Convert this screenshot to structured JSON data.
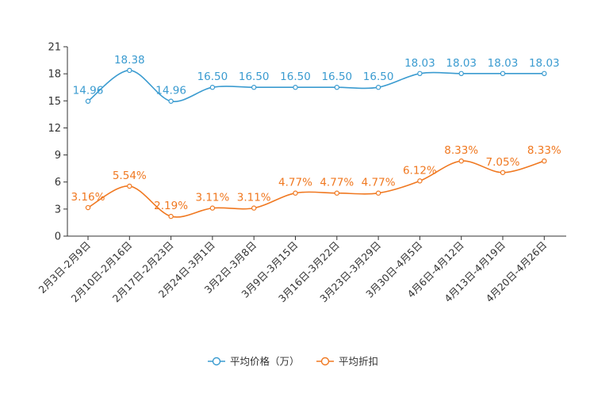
{
  "chart_data": {
    "type": "line",
    "title": "",
    "xlabel": "",
    "ylabel": "",
    "ylim": [
      0,
      21
    ],
    "yticks": [
      0,
      3,
      6,
      9,
      12,
      15,
      18,
      21
    ],
    "grid": false,
    "legend_position": "bottom-center",
    "categories": [
      "2月3日-2月9日",
      "2月10日-2月16日",
      "2月17日-2月23日",
      "2月24日-3月1日",
      "3月2日-3月8日",
      "3月9日-3月15日",
      "3月16日-3月22日",
      "3月23日-3月29日",
      "3月30日-4月5日",
      "4月6日-4月12日",
      "4月13日-4月19日",
      "4月20日-4月26日"
    ],
    "series": [
      {
        "name": "平均价格（万）",
        "color": "#3a9bd0",
        "values": [
          14.96,
          18.38,
          14.96,
          16.5,
          16.5,
          16.5,
          16.5,
          16.5,
          18.03,
          18.03,
          18.03,
          18.03
        ],
        "labels": [
          "14.96",
          "18.38",
          "14.96",
          "16.50",
          "16.50",
          "16.50",
          "16.50",
          "16.50",
          "18.03",
          "18.03",
          "18.03",
          "18.03"
        ]
      },
      {
        "name": "平均折扣",
        "color": "#f07820",
        "values": [
          3.16,
          5.54,
          2.19,
          3.11,
          3.11,
          4.77,
          4.77,
          4.77,
          6.12,
          8.33,
          7.05,
          8.33
        ],
        "labels": [
          "3.16%",
          "5.54%",
          "2.19%",
          "3.11%",
          "3.11%",
          "4.77%",
          "4.77%",
          "4.77%",
          "6.12%",
          "8.33%",
          "7.05%",
          "8.33%"
        ]
      }
    ]
  }
}
